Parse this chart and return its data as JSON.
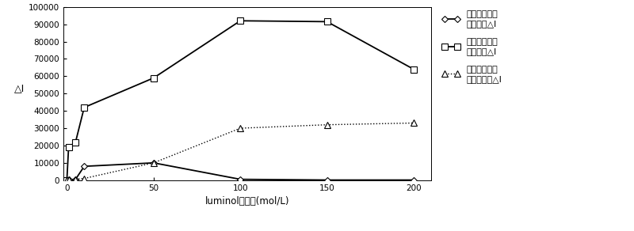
{
  "x_values": [
    0,
    1,
    5,
    10,
    50,
    100,
    150,
    200
  ],
  "series1_y": [
    0,
    200,
    500,
    8000,
    10000,
    500,
    100,
    100
  ],
  "series2_y": [
    0,
    19000,
    22000,
    42000,
    59000,
    92000,
    91500,
    64000
  ],
  "series3_y": [
    0,
    200,
    500,
    1000,
    10000,
    30000,
    32000,
    33000
  ],
  "series1_label": "辛硫磷的化学\n发光强度△I",
  "series2_label": "毒死蜱的化学\n发光强度△I",
  "series3_label": "杀螟硫磷的化\n学发光强度△I",
  "xlabel": "luminol的浓度(mol/L)",
  "ylabel": "△I",
  "ylim": [
    0,
    100000
  ],
  "xlim": [
    -2,
    210
  ],
  "yticks": [
    0,
    10000,
    20000,
    30000,
    40000,
    50000,
    60000,
    70000,
    80000,
    90000,
    100000
  ],
  "xticks": [
    0,
    50,
    100,
    150,
    200
  ],
  "background_color": "#ffffff"
}
